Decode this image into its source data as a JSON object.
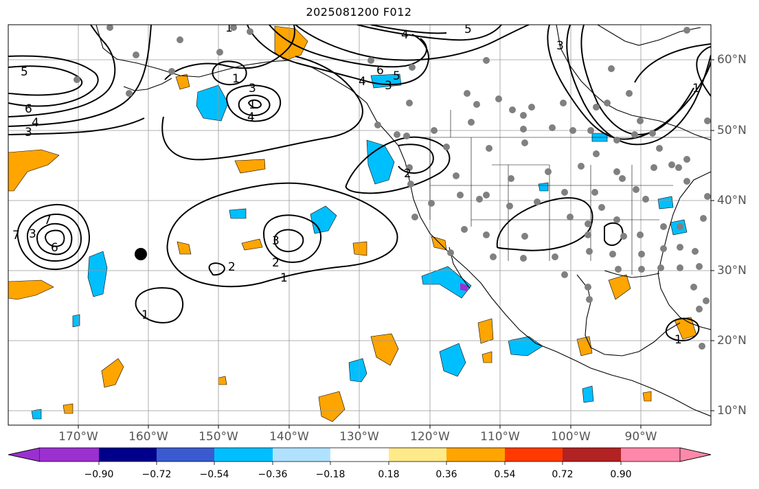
{
  "title": "2025081200 F012",
  "lon_labels": [
    "170°W",
    "160°W",
    "150°W",
    "140°W",
    "130°W",
    "120°W",
    "110°W",
    "100°W",
    "90°W"
  ],
  "lat_labels": [
    "60°N",
    "50°N",
    "40°N",
    "30°N",
    "20°N",
    "10°N"
  ],
  "colorbar": {
    "ticks": [
      "−0.90",
      "−0.72",
      "−0.54",
      "−0.36",
      "−0.18",
      "0.18",
      "0.36",
      "0.54",
      "0.72",
      "0.90"
    ],
    "colors": [
      "#9b30d0",
      "#00008b",
      "#3a5bd0",
      "#00bfff",
      "#b0e2ff",
      "#ffffff",
      "#ffea8a",
      "#ffa500",
      "#ff3a00",
      "#b22222",
      "#ff88aa"
    ]
  },
  "contour_labels": [
    "1",
    "5",
    "6",
    "4",
    "3",
    "1",
    "3",
    "4",
    "1",
    "4",
    "5",
    "6",
    "5",
    "3",
    "4",
    "3",
    "1",
    "7",
    "3",
    "6",
    "7",
    "3",
    "2",
    "2",
    "1",
    "1",
    "2",
    "1"
  ],
  "colors": {
    "contour": "#000000",
    "grid": "#999999",
    "station": "#808080"
  }
}
